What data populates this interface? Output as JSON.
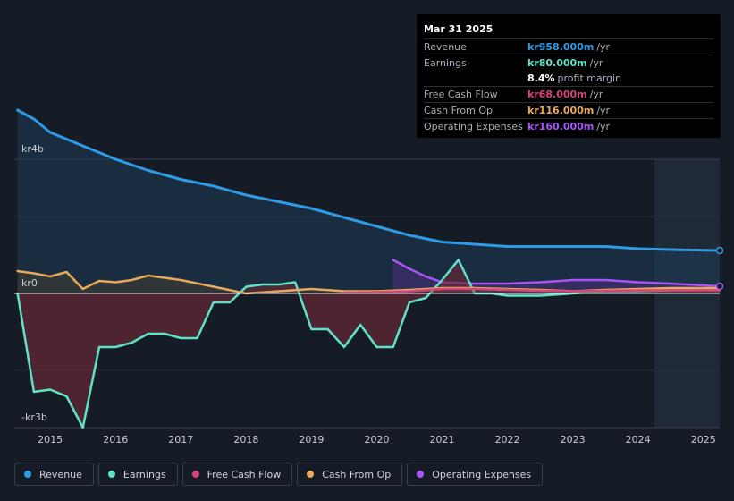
{
  "tooltip": {
    "date": "Mar 31 2025",
    "rows": [
      {
        "label": "Revenue",
        "value": "kr958.000m",
        "unit": "/yr",
        "color": "#2d9be5"
      },
      {
        "label": "Earnings",
        "value": "kr80.000m",
        "unit": "/yr",
        "color": "#5fe3c8"
      },
      {
        "label": "",
        "value": "8.4%",
        "unit": "profit margin",
        "color": "#ffffff"
      },
      {
        "label": "Free Cash Flow",
        "value": "kr68.000m",
        "unit": "/yr",
        "color": "#d6457a"
      },
      {
        "label": "Cash From Op",
        "value": "kr116.000m",
        "unit": "/yr",
        "color": "#e8a95a"
      },
      {
        "label": "Operating Expenses",
        "value": "kr160.000m",
        "unit": "/yr",
        "color": "#a855f7"
      }
    ]
  },
  "legend": [
    {
      "label": "Revenue",
      "color": "#2d9be5"
    },
    {
      "label": "Earnings",
      "color": "#5fe3c8"
    },
    {
      "label": "Free Cash Flow",
      "color": "#d6457a"
    },
    {
      "label": "Cash From Op",
      "color": "#e8a95a"
    },
    {
      "label": "Operating Expenses",
      "color": "#a855f7"
    }
  ],
  "chart_data": {
    "type": "area",
    "y_axis_labels": [
      "kr4b",
      "kr0",
      "-kr3b"
    ],
    "ylim": [
      -3.2,
      4.3
    ],
    "xlim": [
      2014.45,
      2025.25
    ],
    "x_ticks": [
      "2015",
      "2016",
      "2017",
      "2018",
      "2019",
      "2020",
      "2021",
      "2022",
      "2023",
      "2024",
      "2025"
    ],
    "forecast_start": 2024.25,
    "grid": true,
    "series": [
      {
        "name": "Revenue",
        "color": "#2d9be5",
        "x": [
          2014.5,
          2014.75,
          2015.0,
          2015.5,
          2016.0,
          2016.5,
          2017.0,
          2017.5,
          2018.0,
          2018.5,
          2019.0,
          2019.5,
          2020.0,
          2020.5,
          2021.0,
          2021.5,
          2022.0,
          2022.5,
          2023.0,
          2023.5,
          2024.0,
          2024.5,
          2025.25
        ],
        "values": [
          4.1,
          3.9,
          3.6,
          3.3,
          3.0,
          2.75,
          2.55,
          2.4,
          2.2,
          2.05,
          1.9,
          1.7,
          1.5,
          1.3,
          1.15,
          1.1,
          1.05,
          1.05,
          1.05,
          1.05,
          1.0,
          0.98,
          0.96
        ]
      },
      {
        "name": "Earnings",
        "color": "#5fe3c8",
        "x": [
          2014.5,
          2014.75,
          2015.0,
          2015.25,
          2015.5,
          2015.75,
          2016.0,
          2016.25,
          2016.5,
          2016.75,
          2017.0,
          2017.25,
          2017.5,
          2017.75,
          2018.0,
          2018.25,
          2018.5,
          2018.75,
          2019.0,
          2019.25,
          2019.5,
          2019.75,
          2020.0,
          2020.25,
          2020.5,
          2020.75,
          2021.0,
          2021.25,
          2021.5,
          2021.75,
          2022.0,
          2022.5,
          2023.0,
          2023.5,
          2024.0,
          2024.5,
          2025.25
        ],
        "values": [
          0.0,
          -2.2,
          -2.15,
          -2.3,
          -3.0,
          -1.2,
          -1.2,
          -1.1,
          -0.9,
          -0.9,
          -1.0,
          -1.0,
          -0.2,
          -0.2,
          0.15,
          0.2,
          0.2,
          0.25,
          -0.8,
          -0.8,
          -1.2,
          -0.7,
          -1.2,
          -1.2,
          -0.2,
          -0.1,
          0.3,
          0.75,
          0.0,
          0.0,
          -0.05,
          -0.05,
          0.0,
          0.05,
          0.05,
          0.07,
          0.08
        ]
      },
      {
        "name": "Free Cash Flow",
        "color": "#d6457a",
        "x": [
          2019.5,
          2020.0,
          2020.5,
          2021.0,
          2021.5,
          2022.0,
          2022.5,
          2023.0,
          2023.5,
          2024.0,
          2024.5,
          2025.25
        ],
        "values": [
          0.02,
          0.03,
          0.05,
          0.1,
          0.1,
          0.08,
          0.06,
          0.05,
          0.06,
          0.07,
          0.07,
          0.07
        ]
      },
      {
        "name": "Cash From Op",
        "color": "#e8a95a",
        "x": [
          2014.5,
          2014.75,
          2015.0,
          2015.25,
          2015.5,
          2015.75,
          2016.0,
          2016.25,
          2016.5,
          2017.0,
          2017.5,
          2018.0,
          2018.5,
          2019.0,
          2019.5,
          2020.0,
          2020.5,
          2021.0,
          2021.5,
          2022.0,
          2022.5,
          2023.0,
          2023.5,
          2024.0,
          2024.5,
          2025.25
        ],
        "values": [
          0.5,
          0.45,
          0.38,
          0.48,
          0.1,
          0.28,
          0.25,
          0.3,
          0.4,
          0.3,
          0.15,
          0.0,
          0.05,
          0.1,
          0.05,
          0.05,
          0.08,
          0.12,
          0.12,
          0.1,
          0.08,
          0.05,
          0.08,
          0.1,
          0.12,
          0.12
        ]
      },
      {
        "name": "Operating Expenses",
        "color": "#a855f7",
        "x": [
          2020.25,
          2020.5,
          2020.75,
          2021.0,
          2021.5,
          2022.0,
          2022.5,
          2023.0,
          2023.5,
          2024.0,
          2024.5,
          2025.25
        ],
        "values": [
          0.75,
          0.55,
          0.38,
          0.25,
          0.22,
          0.22,
          0.25,
          0.3,
          0.3,
          0.25,
          0.22,
          0.16
        ]
      }
    ]
  }
}
